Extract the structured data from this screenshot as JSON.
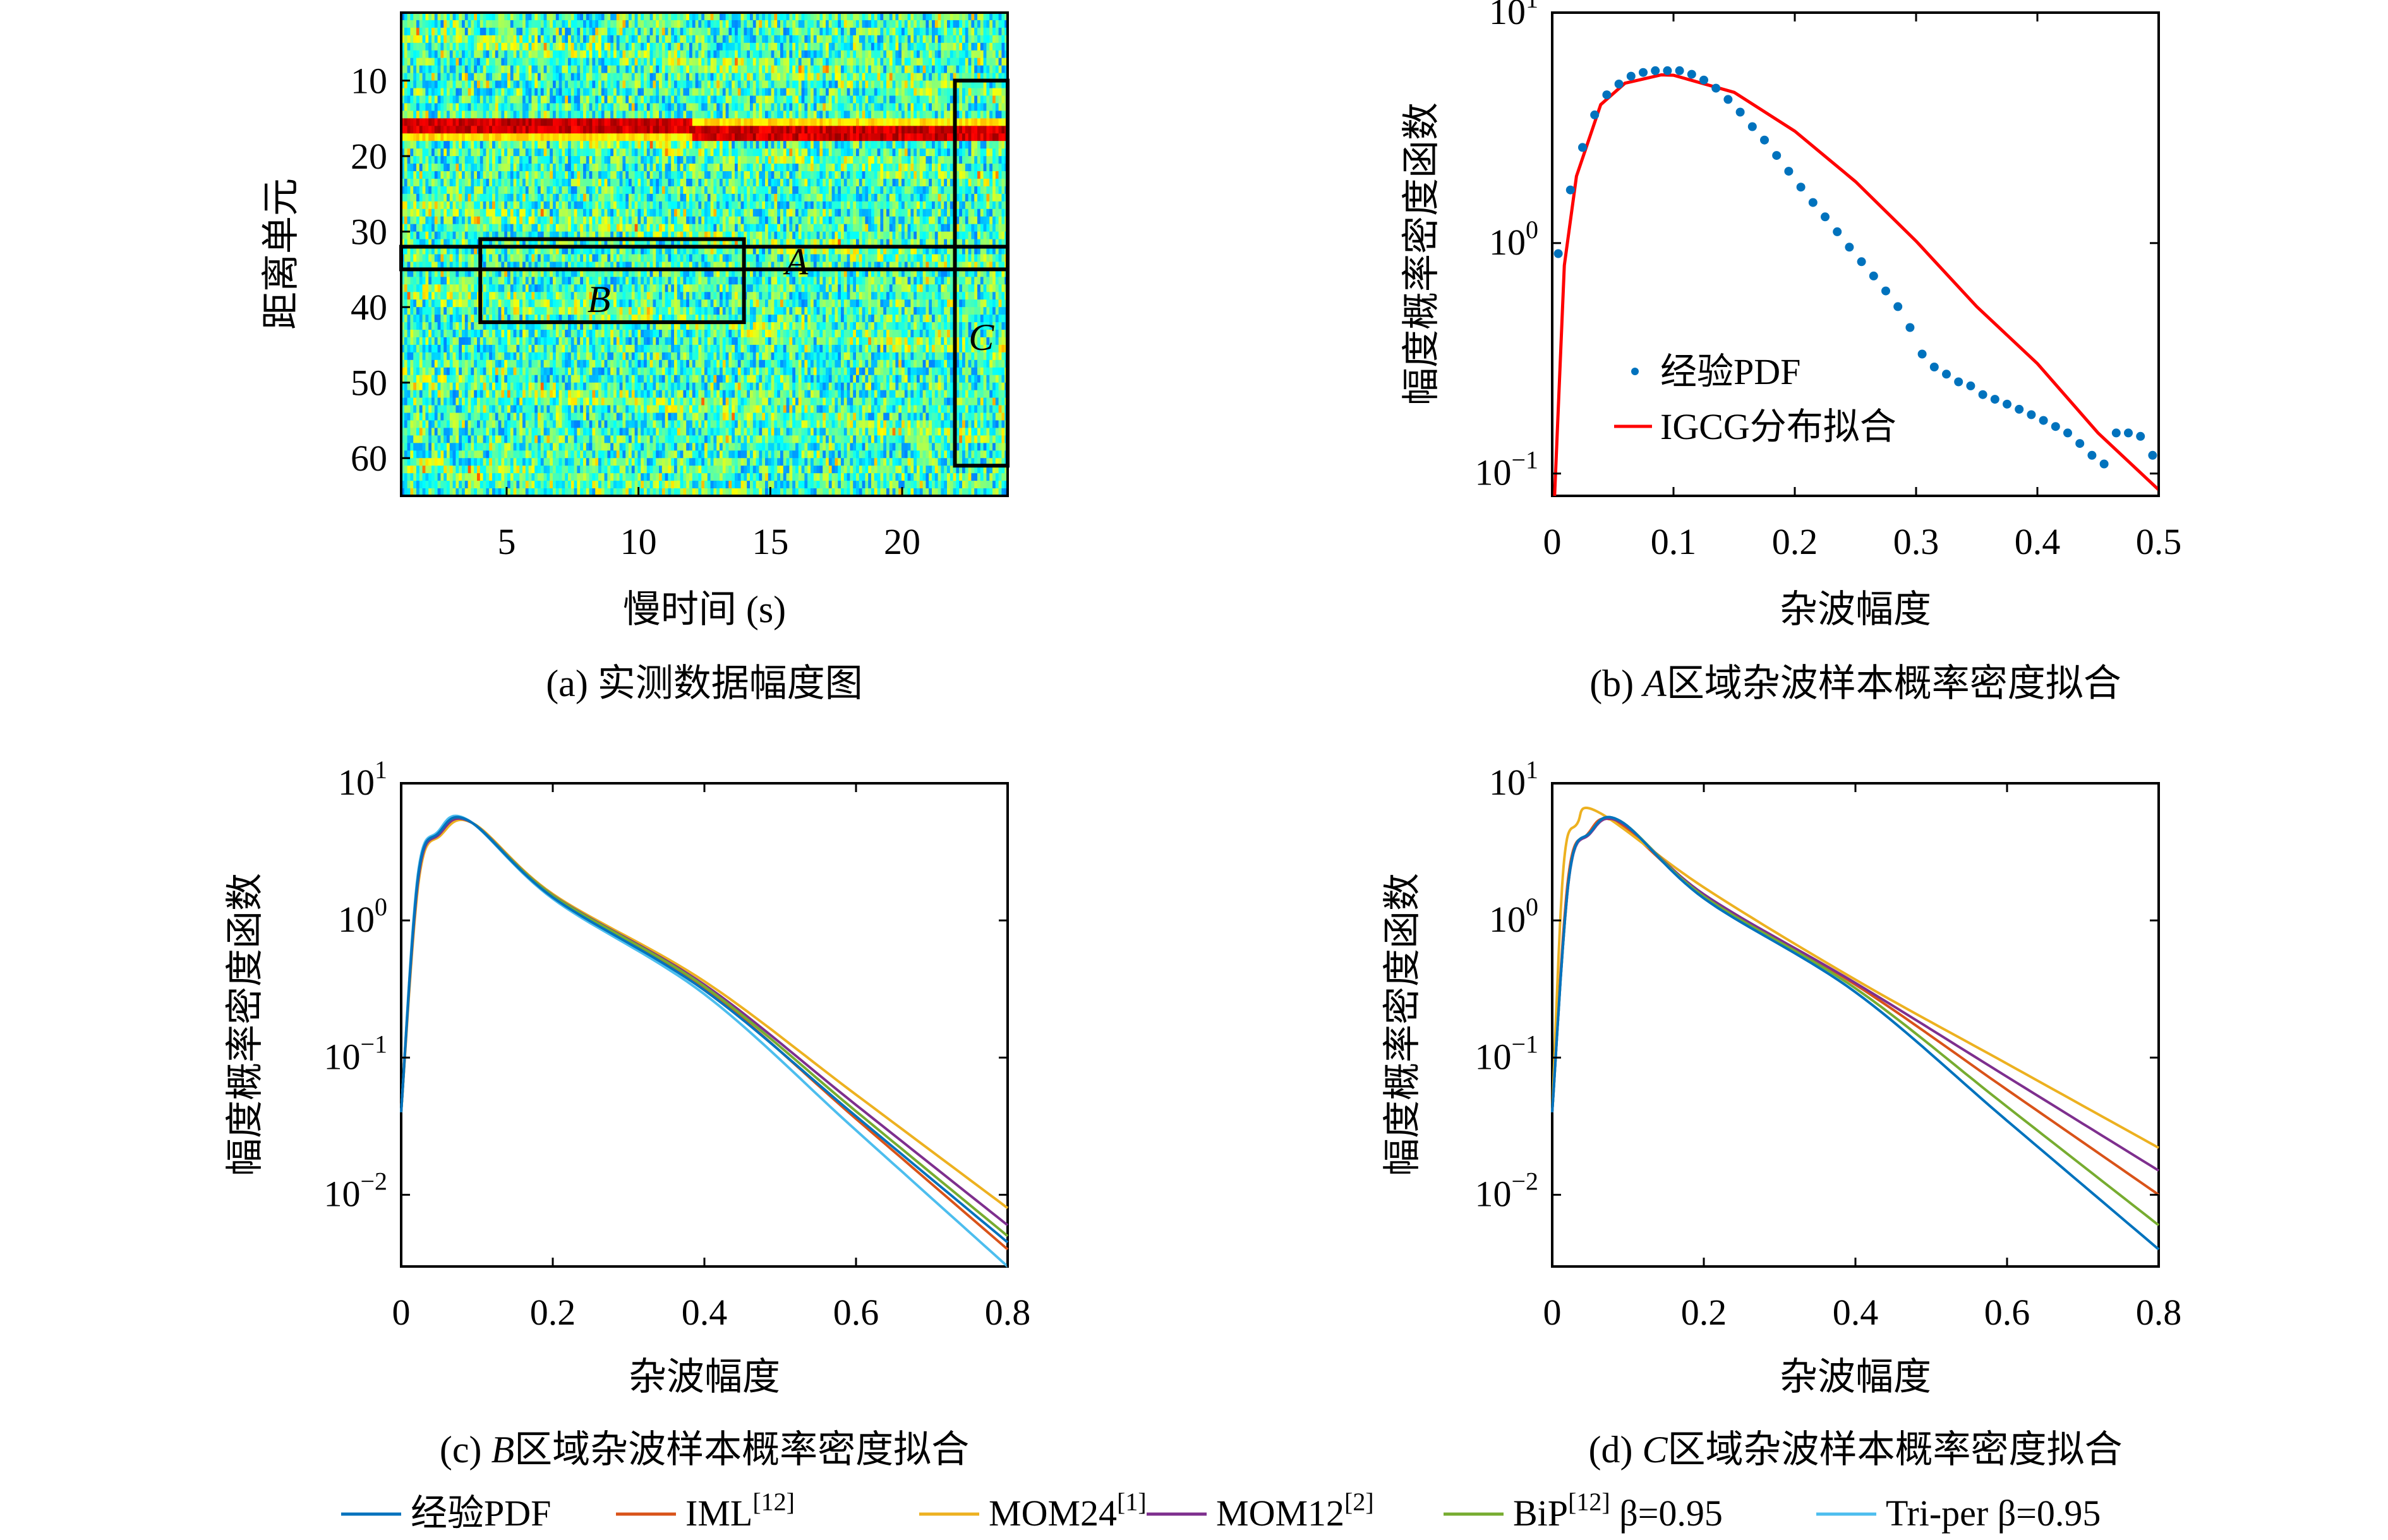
{
  "panels": {
    "a": {
      "caption": "(a) 实测数据幅度图",
      "xlabel": "慢时间 (s)",
      "ylabel": "距离单元",
      "xticks": [
        "5",
        "10",
        "15",
        "20"
      ],
      "yticks": [
        "10",
        "20",
        "30",
        "40",
        "50",
        "60"
      ],
      "regions": {
        "A": "A",
        "B": "B",
        "C": "C"
      }
    },
    "b": {
      "caption_prefix": "(b) ",
      "caption_region": "A",
      "caption_rest": "区域杂波样本概率密度拟合",
      "xlabel": "杂波幅度",
      "ylabel": "幅度概率密度函数",
      "xticks": [
        "0",
        "0.1",
        "0.2",
        "0.3",
        "0.4",
        "0.5"
      ],
      "legend": {
        "empirical": "经验PDF",
        "fit": "IGCG分布拟合"
      }
    },
    "c": {
      "caption_prefix": "(c) ",
      "caption_region": "B",
      "caption_rest": "区域杂波样本概率密度拟合",
      "xlabel": "杂波幅度",
      "ylabel": "幅度概率密度函数",
      "xticks": [
        "0",
        "0.2",
        "0.4",
        "0.6",
        "0.8"
      ]
    },
    "d": {
      "caption_prefix": "(d) ",
      "caption_region": "C",
      "caption_rest": "区域杂波样本概率密度拟合",
      "xlabel": "杂波幅度",
      "ylabel": "幅度概率密度函数",
      "xticks": [
        "0",
        "0.2",
        "0.4",
        "0.6",
        "0.8"
      ]
    }
  },
  "log_ticks": {
    "base": "10",
    "b_exps": [
      "1",
      "0",
      "−1"
    ],
    "cd_exps": [
      "1",
      "0",
      "−1",
      "−2"
    ]
  },
  "bottom_legend": [
    {
      "name": "经验PDF",
      "sup": "",
      "suffix": "",
      "color": "#0072BD"
    },
    {
      "name": "IML",
      "sup": "[12]",
      "suffix": "",
      "color": "#D95319"
    },
    {
      "name": "MOM24",
      "sup": "[1]",
      "suffix": "",
      "color": "#EDB120"
    },
    {
      "name": "MOM12",
      "sup": "[2]",
      "suffix": "",
      "color": "#7E2F8E"
    },
    {
      "name": "BiP",
      "sup": "[12]",
      "suffix": " β=0.95",
      "color": "#77AC30"
    },
    {
      "name": "Tri-per",
      "sup": "",
      "suffix": " β=0.95",
      "color": "#4DBEEE"
    }
  ],
  "chart_data": [
    {
      "type": "heatmap",
      "title": "(a) 实测数据幅度图",
      "xlabel": "慢时间 (s)",
      "ylabel": "距离单元",
      "xlim": [
        1,
        24
      ],
      "ylim": [
        1,
        65
      ],
      "y_reversed": true,
      "colormap": "jet",
      "features": [
        {
          "description": "strong target track",
          "range_cell": 16,
          "x_from": 1,
          "x_to": 24,
          "intensity": "high"
        }
      ],
      "regions": [
        {
          "label": "A",
          "x": [
            1,
            24
          ],
          "y": [
            32,
            35
          ]
        },
        {
          "label": "B",
          "x": [
            4,
            14
          ],
          "y": [
            31,
            42
          ]
        },
        {
          "label": "C",
          "x": [
            22,
            24
          ],
          "y": [
            10,
            61
          ]
        }
      ]
    },
    {
      "type": "scatter",
      "title": "(b) A区域杂波样本概率密度拟合",
      "xlabel": "杂波幅度",
      "ylabel": "幅度概率密度函数",
      "xlim": [
        0,
        0.5
      ],
      "ylim": [
        0.08,
        10
      ],
      "y_scale": "log",
      "legend_position": "bottom-left",
      "series": [
        {
          "name": "经验PDF",
          "style": "points",
          "color": "#0072BD",
          "x": [
            0.005,
            0.015,
            0.025,
            0.035,
            0.045,
            0.055,
            0.065,
            0.075,
            0.085,
            0.095,
            0.105,
            0.115,
            0.125,
            0.135,
            0.145,
            0.155,
            0.165,
            0.175,
            0.185,
            0.195,
            0.205,
            0.215,
            0.225,
            0.235,
            0.245,
            0.255,
            0.265,
            0.275,
            0.285,
            0.295,
            0.305,
            0.315,
            0.325,
            0.335,
            0.345,
            0.355,
            0.365,
            0.375,
            0.385,
            0.395,
            0.405,
            0.415,
            0.425,
            0.435,
            0.445,
            0.455,
            0.465,
            0.475,
            0.485,
            0.495
          ],
          "y": [
            0.9,
            1.7,
            2.6,
            3.6,
            4.4,
            4.9,
            5.3,
            5.5,
            5.6,
            5.6,
            5.6,
            5.4,
            5.1,
            4.7,
            4.2,
            3.7,
            3.2,
            2.8,
            2.4,
            2.05,
            1.75,
            1.5,
            1.3,
            1.12,
            0.96,
            0.83,
            0.72,
            0.62,
            0.53,
            0.43,
            0.33,
            0.29,
            0.27,
            0.25,
            0.24,
            0.22,
            0.21,
            0.2,
            0.19,
            0.18,
            0.17,
            0.16,
            0.15,
            0.135,
            0.12,
            0.11,
            0.15,
            0.15,
            0.145,
            0.12
          ]
        },
        {
          "name": "IGCG分布拟合",
          "style": "line",
          "color": "#FF0000",
          "model": "lognormal-like curve, peak ≈ 5.3 at x ≈ 0.09",
          "x": [
            0.002,
            0.01,
            0.02,
            0.04,
            0.06,
            0.09,
            0.1,
            0.15,
            0.2,
            0.25,
            0.3,
            0.35,
            0.4,
            0.45,
            0.5
          ],
          "y": [
            0.08,
            0.8,
            1.95,
            3.99,
            4.94,
            5.37,
            5.35,
            4.51,
            3.06,
            1.85,
            1.02,
            0.53,
            0.3,
            0.15,
            0.085
          ]
        }
      ]
    },
    {
      "type": "line",
      "title": "(c) B区域杂波样本概率密度拟合",
      "xlabel": "杂波幅度",
      "ylabel": "幅度概率密度函数",
      "xlim": [
        0,
        0.8
      ],
      "ylim": [
        0.003,
        10
      ],
      "y_scale": "log",
      "series": [
        {
          "name": "经验PDF",
          "color": "#0072BD",
          "peak": 5.3,
          "peak_x": 0.09,
          "y_at_0_4": 0.31,
          "y_at_0_8": 0.0045
        },
        {
          "name": "IML",
          "color": "#D95319",
          "peak": 5.3,
          "peak_x": 0.09,
          "y_at_0_4": 0.32,
          "y_at_0_8": 0.004
        },
        {
          "name": "MOM24",
          "color": "#EDB120",
          "peak": 5.1,
          "peak_x": 0.095,
          "y_at_0_4": 0.36,
          "y_at_0_8": 0.008
        },
        {
          "name": "MOM12",
          "color": "#7E2F8E",
          "peak": 5.2,
          "peak_x": 0.092,
          "y_at_0_4": 0.34,
          "y_at_0_8": 0.006
        },
        {
          "name": "BiP",
          "color": "#77AC30",
          "peak": 5.3,
          "peak_x": 0.09,
          "y_at_0_4": 0.33,
          "y_at_0_8": 0.005
        },
        {
          "name": "Tri-per",
          "color": "#4DBEEE",
          "peak": 5.4,
          "peak_x": 0.088,
          "y_at_0_4": 0.29,
          "y_at_0_8": 0.003
        }
      ]
    },
    {
      "type": "line",
      "title": "(d) C区域杂波样本概率密度拟合",
      "xlabel": "杂波幅度",
      "ylabel": "幅度概率密度函数",
      "xlim": [
        0,
        0.8
      ],
      "ylim": [
        0.003,
        10
      ],
      "y_scale": "log",
      "series": [
        {
          "name": "经验PDF",
          "color": "#0072BD",
          "peak": 5.3,
          "peak_x": 0.09,
          "y_at_0_4": 0.3,
          "y_at_0_8": 0.004
        },
        {
          "name": "IML",
          "color": "#D95319",
          "peak": 5.2,
          "peak_x": 0.085,
          "y_at_0_4": 0.34,
          "y_at_0_8": 0.01
        },
        {
          "name": "MOM24",
          "color": "#EDB120",
          "peak": 6.2,
          "peak_x": 0.06,
          "y_at_0_4": 0.37,
          "y_at_0_8": 0.022
        },
        {
          "name": "MOM12",
          "color": "#7E2F8E",
          "peak": 5.2,
          "peak_x": 0.09,
          "y_at_0_4": 0.35,
          "y_at_0_8": 0.015
        },
        {
          "name": "BiP",
          "color": "#77AC30",
          "peak": 5.3,
          "peak_x": 0.09,
          "y_at_0_4": 0.32,
          "y_at_0_8": 0.006
        },
        {
          "name": "Tri-per",
          "color": "#4DBEEE",
          "peak": 5.3,
          "peak_x": 0.09,
          "y_at_0_4": 0.3,
          "y_at_0_8": 0.004
        }
      ]
    }
  ]
}
